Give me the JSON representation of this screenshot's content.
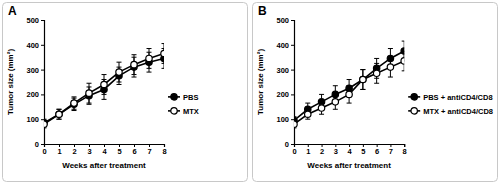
{
  "chart_data": [
    {
      "type": "line",
      "title": "A",
      "xlabel": "Weeks after treatment",
      "ylabel": "Tumor size (mm²)",
      "x": [
        0,
        1,
        2,
        3,
        4,
        5,
        6,
        7,
        8
      ],
      "xlim": [
        0,
        8
      ],
      "xticks": [
        0,
        1,
        2,
        3,
        4,
        5,
        6,
        7,
        8
      ],
      "ylim": [
        0,
        500
      ],
      "yticks": [
        0,
        100,
        200,
        300,
        400,
        500
      ],
      "grid": false,
      "legend": "right",
      "series": [
        {
          "name": "PBS",
          "color": "#000000",
          "marker": "filled-circle",
          "values": [
            85,
            120,
            160,
            195,
            220,
            275,
            310,
            330,
            345
          ],
          "errors": [
            15,
            20,
            25,
            35,
            40,
            35,
            40,
            40,
            40
          ]
        },
        {
          "name": "MTX",
          "color": "#000000",
          "marker": "open-circle",
          "values": [
            80,
            120,
            165,
            205,
            240,
            290,
            320,
            345,
            365
          ],
          "errors": [
            15,
            20,
            25,
            40,
            40,
            40,
            40,
            40,
            40
          ]
        }
      ]
    },
    {
      "type": "line",
      "title": "B",
      "xlabel": "Weeks after treatment",
      "ylabel": "Tumor size (mm²)",
      "x": [
        0,
        1,
        2,
        3,
        4,
        5,
        6,
        7,
        8
      ],
      "xlim": [
        0,
        8
      ],
      "xticks": [
        0,
        1,
        2,
        3,
        4,
        5,
        6,
        7,
        8
      ],
      "ylim": [
        0,
        500
      ],
      "yticks": [
        0,
        100,
        200,
        300,
        400,
        500
      ],
      "grid": false,
      "legend": "right",
      "series": [
        {
          "name": "PBS + antiCD4/CD8",
          "color": "#000000",
          "marker": "filled-circle",
          "values": [
            95,
            140,
            170,
            200,
            225,
            260,
            305,
            345,
            375
          ],
          "errors": [
            15,
            25,
            30,
            35,
            35,
            40,
            40,
            40,
            40
          ]
        },
        {
          "name": "MTX + antiCD4/CD8",
          "color": "#000000",
          "marker": "open-circle",
          "values": [
            80,
            120,
            145,
            170,
            200,
            260,
            285,
            310,
            335
          ],
          "errors": [
            15,
            20,
            25,
            30,
            35,
            40,
            40,
            40,
            40
          ]
        }
      ]
    }
  ]
}
